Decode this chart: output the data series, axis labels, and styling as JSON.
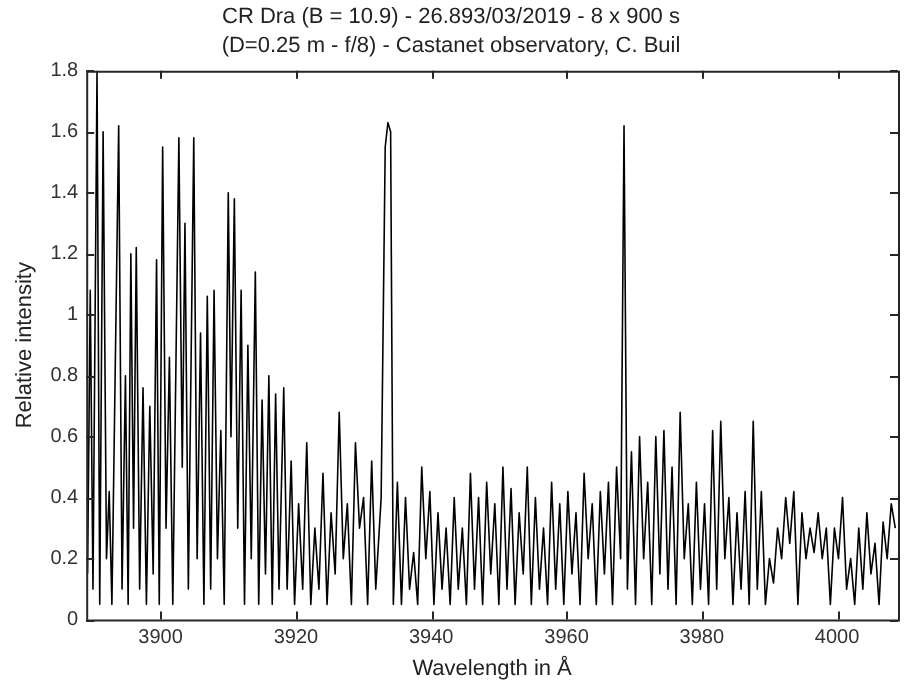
{
  "chart_data": {
    "type": "line",
    "title": "CR Dra (B = 10.9) - 26.893/03/2019 - 8 x 900 s",
    "subtitle": "(D=0.25 m - f/8) - Castanet observatory, C. Buil",
    "xlabel": "Wavelength in Å",
    "ylabel": "Relative intensity",
    "xlim": [
      3889,
      4009
    ],
    "xticks": [
      3900,
      3920,
      3940,
      3960,
      3980,
      4000
    ],
    "ylim": [
      0,
      1.8
    ],
    "yticks": [
      0,
      0.2,
      0.4,
      0.6,
      0.8,
      1,
      1.2,
      1.4,
      1.6,
      1.8
    ],
    "grid": false,
    "legend": false,
    "marker": "none",
    "line_style": "solid",
    "series": [
      {
        "color": "#000000",
        "x": [
          3889.2,
          3889.6,
          3890.0,
          3890.6,
          3891.0,
          3891.5,
          3892.0,
          3892.4,
          3892.8,
          3893.8,
          3894.3,
          3894.8,
          3895.2,
          3895.6,
          3896.0,
          3896.4,
          3896.9,
          3897.4,
          3897.9,
          3898.4,
          3898.9,
          3899.4,
          3899.8,
          3900.3,
          3900.8,
          3901.3,
          3901.8,
          3902.7,
          3903.2,
          3903.6,
          3904.1,
          3904.9,
          3905.4,
          3905.9,
          3906.4,
          3906.9,
          3907.4,
          3907.9,
          3908.4,
          3908.9,
          3909.4,
          3910.0,
          3910.4,
          3910.9,
          3911.4,
          3911.9,
          3912.4,
          3912.9,
          3913.4,
          3914.0,
          3914.5,
          3915.0,
          3915.5,
          3916.0,
          3916.5,
          3917.0,
          3917.5,
          3918.2,
          3918.7,
          3919.3,
          3919.8,
          3920.4,
          3921.0,
          3921.6,
          3922.2,
          3922.8,
          3923.4,
          3924.0,
          3924.6,
          3925.2,
          3925.8,
          3926.4,
          3927.0,
          3927.6,
          3928.2,
          3928.8,
          3929.4,
          3930.0,
          3930.6,
          3931.2,
          3931.8,
          3932.6,
          3933.2,
          3933.6,
          3934.0,
          3934.4,
          3935.0,
          3935.6,
          3936.2,
          3936.8,
          3937.4,
          3938.0,
          3938.6,
          3939.2,
          3939.8,
          3940.4,
          3941.0,
          3941.6,
          3942.2,
          3942.8,
          3943.4,
          3944.0,
          3944.6,
          3945.2,
          3945.8,
          3946.4,
          3947.0,
          3947.6,
          3948.2,
          3948.8,
          3949.4,
          3950.0,
          3950.6,
          3951.2,
          3951.8,
          3952.4,
          3953.0,
          3953.6,
          3954.2,
          3954.8,
          3955.4,
          3956.0,
          3956.6,
          3957.2,
          3957.8,
          3958.4,
          3959.0,
          3959.6,
          3960.2,
          3960.8,
          3961.4,
          3962.0,
          3962.6,
          3963.2,
          3963.8,
          3964.4,
          3965.0,
          3965.6,
          3966.2,
          3966.8,
          3967.4,
          3968.0,
          3968.5,
          3969.0,
          3969.6,
          3970.2,
          3970.8,
          3971.4,
          3972.0,
          3972.6,
          3973.2,
          3973.8,
          3974.4,
          3975.0,
          3975.6,
          3976.2,
          3976.8,
          3977.4,
          3978.0,
          3978.6,
          3979.2,
          3979.8,
          3980.4,
          3981.0,
          3981.6,
          3982.2,
          3982.8,
          3983.4,
          3984.0,
          3984.6,
          3985.2,
          3985.8,
          3986.4,
          3987.0,
          3987.6,
          3988.2,
          3988.8,
          3989.4,
          3990.0,
          3990.6,
          3991.2,
          3991.8,
          3992.4,
          3993.0,
          3993.6,
          3994.2,
          3994.8,
          3995.4,
          3996.0,
          3996.6,
          3997.2,
          3997.8,
          3998.4,
          3999.0,
          3999.6,
          4000.2,
          4000.8,
          4001.4,
          4002.0,
          4002.6,
          4003.2,
          4003.8,
          4004.4,
          4005.0,
          4005.6,
          4006.2,
          4006.8,
          4007.4,
          4008.0,
          4008.6
        ],
        "values": [
          0.15,
          1.08,
          0.1,
          1.8,
          0.05,
          1.6,
          0.2,
          0.42,
          0.05,
          1.62,
          0.1,
          0.8,
          0.05,
          1.2,
          0.3,
          1.22,
          0.1,
          0.76,
          0.05,
          0.7,
          0.15,
          1.18,
          0.05,
          1.55,
          0.3,
          0.86,
          0.05,
          1.58,
          0.5,
          1.3,
          0.1,
          1.58,
          0.2,
          0.94,
          0.05,
          1.06,
          0.1,
          1.08,
          0.2,
          0.62,
          0.05,
          1.4,
          0.6,
          1.38,
          0.3,
          1.08,
          0.05,
          0.9,
          0.2,
          1.14,
          0.05,
          0.72,
          0.15,
          0.8,
          0.05,
          0.74,
          0.1,
          0.76,
          0.1,
          0.52,
          0.05,
          0.38,
          0.1,
          0.58,
          0.05,
          0.3,
          0.1,
          0.48,
          0.05,
          0.35,
          0.15,
          0.68,
          0.2,
          0.38,
          0.05,
          0.58,
          0.3,
          0.4,
          0.05,
          0.52,
          0.1,
          0.4,
          1.55,
          1.63,
          1.6,
          0.05,
          0.45,
          0.05,
          0.4,
          0.1,
          0.22,
          0.05,
          0.5,
          0.2,
          0.42,
          0.05,
          0.35,
          0.1,
          0.3,
          0.05,
          0.4,
          0.1,
          0.3,
          0.05,
          0.48,
          0.1,
          0.4,
          0.05,
          0.45,
          0.15,
          0.38,
          0.05,
          0.5,
          0.1,
          0.43,
          0.05,
          0.35,
          0.15,
          0.5,
          0.05,
          0.4,
          0.1,
          0.3,
          0.05,
          0.45,
          0.1,
          0.38,
          0.05,
          0.42,
          0.15,
          0.35,
          0.05,
          0.48,
          0.2,
          0.38,
          0.05,
          0.42,
          0.15,
          0.45,
          0.05,
          0.5,
          0.2,
          1.62,
          0.1,
          0.55,
          0.05,
          0.6,
          0.2,
          0.45,
          0.05,
          0.6,
          0.15,
          0.62,
          0.1,
          0.5,
          0.05,
          0.68,
          0.2,
          0.38,
          0.05,
          0.45,
          0.1,
          0.38,
          0.05,
          0.62,
          0.1,
          0.65,
          0.2,
          0.4,
          0.05,
          0.35,
          0.1,
          0.42,
          0.05,
          0.65,
          0.1,
          0.42,
          0.05,
          0.2,
          0.12,
          0.3,
          0.2,
          0.4,
          0.25,
          0.42,
          0.05,
          0.35,
          0.2,
          0.3,
          0.22,
          0.35,
          0.2,
          0.3,
          0.05,
          0.3,
          0.2,
          0.4,
          0.1,
          0.2,
          0.05,
          0.3,
          0.1,
          0.35,
          0.15,
          0.25,
          0.05,
          0.32,
          0.2,
          0.38,
          0.3
        ]
      }
    ]
  }
}
